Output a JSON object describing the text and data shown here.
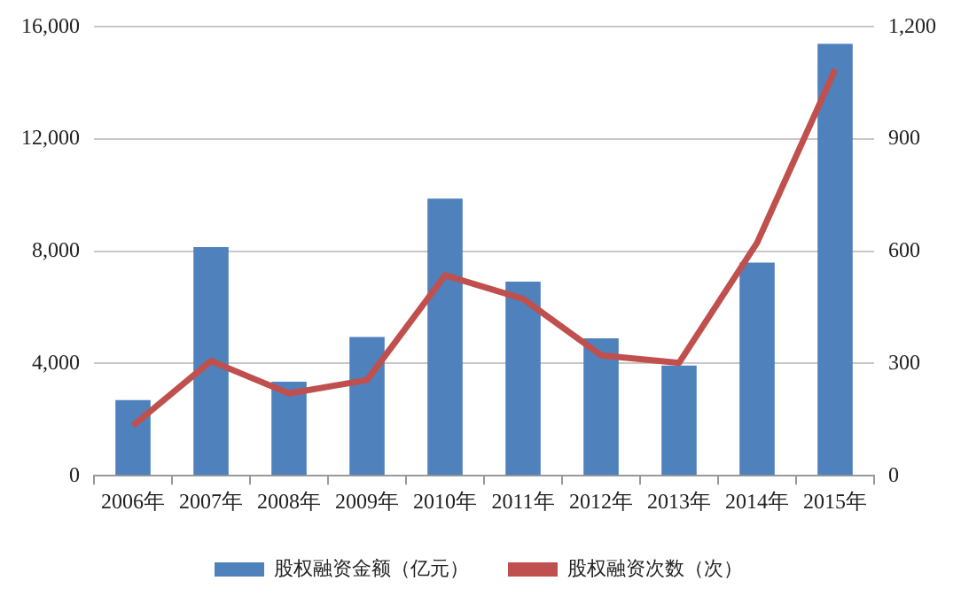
{
  "chart_data": {
    "type": "bar",
    "categories": [
      "2006年",
      "2007年",
      "2008年",
      "2009年",
      "2010年",
      "2011年",
      "2012年",
      "2013年",
      "2014年",
      "2015年"
    ],
    "series": [
      {
        "name": "股权融资金额（亿元）",
        "color": "#4f81bd",
        "values": [
          2700,
          8150,
          3350,
          4950,
          9880,
          6920,
          4900,
          3930,
          7600,
          15400
        ]
      },
      {
        "name": "股权融资次数（次）",
        "type": "line",
        "axis": "y2",
        "color": "#c0504d",
        "marker": "none",
        "values": [
          134,
          307,
          220,
          256,
          536,
          473,
          322,
          302,
          623,
          1086
        ]
      }
    ],
    "ylim": [
      0,
      16000
    ],
    "yticks": [
      0,
      {
        "value": 4000,
        "label": "4,000"
      },
      {
        "value": 8000,
        "label": "8,000"
      },
      {
        "value": 12000,
        "label": "12,000"
      },
      {
        "value": 16000,
        "label": "16,000"
      }
    ],
    "y2lim": [
      0,
      1200
    ],
    "y2ticks": [
      0,
      300,
      600,
      900,
      {
        "value": 1200,
        "label": "1,200"
      }
    ],
    "grid": "y",
    "legend": "bottom"
  }
}
